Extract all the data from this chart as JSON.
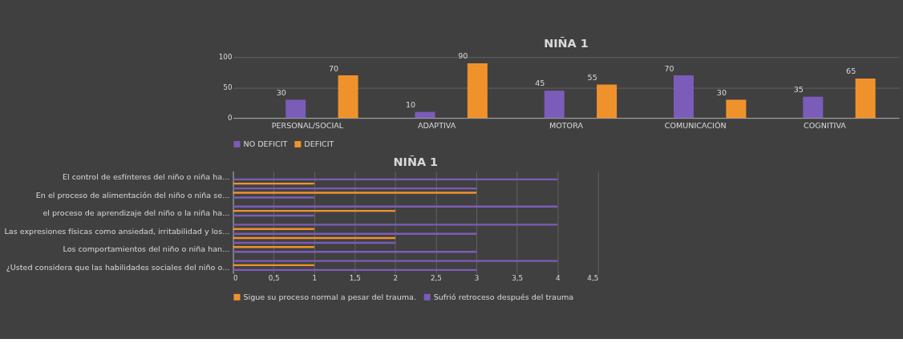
{
  "chart_data": [
    {
      "type": "bar",
      "title": "NIÑA 1",
      "categories": [
        "PERSONAL/SOCIAL",
        "ADAPTIVA",
        "MOTORA",
        "COMUNICACIÓN",
        "COGNITIVA"
      ],
      "series": [
        {
          "name": "NO DEFICIT",
          "color": "#7b5cb8",
          "values": [
            30,
            10,
            45,
            70,
            35
          ]
        },
        {
          "name": "DEFICIT",
          "color": "#f0922b",
          "values": [
            70,
            90,
            55,
            30,
            65
          ]
        }
      ],
      "ylim": [
        0,
        100
      ],
      "yticks": [
        0,
        50,
        100
      ],
      "grid": "y",
      "legend": "bottom",
      "data_labels": true
    },
    {
      "type": "bar",
      "title": "NIÑA 1",
      "orientation": "horizontal",
      "categories": [
        "El control de esfínteres del niño o niña ha...",
        null,
        "En el proceso de alimentación del niño o niña se...",
        null,
        "el proceso de aprendizaje del niño o la niña ha...",
        null,
        "Las expresiones físicas como ansiedad, irritabilidad y los...",
        null,
        "Los comportamientos del niño o niña han...",
        null,
        "¿Usted considera que las habilidades sociales del niño o..."
      ],
      "series": [
        {
          "name": "Sigue su proceso normal a pesar del trauma.",
          "color": "#f0922b",
          "values": [
            null,
            1,
            3,
            null,
            2,
            null,
            1,
            2,
            1,
            null,
            1
          ]
        },
        {
          "name": "Sufrió retroceso después del trauma",
          "color": "#7b5cb8",
          "values": [
            4,
            3,
            1,
            4,
            1,
            4,
            3,
            2,
            3,
            4,
            3
          ]
        }
      ],
      "xlim": [
        0,
        4.5
      ],
      "xticks": [
        0,
        {
          "value": 0.5,
          "label": "0,5"
        },
        1,
        {
          "value": 1.5,
          "label": "1,5"
        },
        2,
        {
          "value": 2.5,
          "label": "2,5"
        },
        3,
        {
          "value": 3.5,
          "label": "3,5"
        },
        4,
        {
          "value": 4.5,
          "label": "4,5"
        }
      ],
      "grid": "x",
      "legend": "bottom"
    }
  ]
}
